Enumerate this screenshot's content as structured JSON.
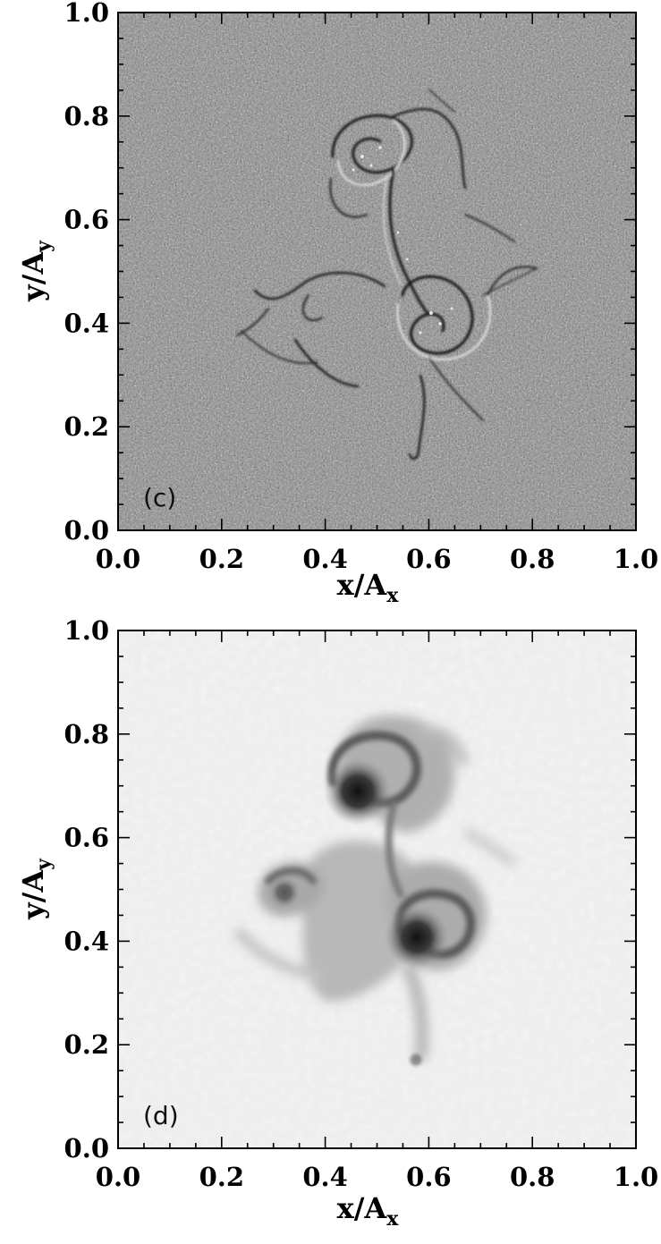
{
  "figure": {
    "panels": [
      {
        "id": "c",
        "tag": "(c)",
        "xlabel_main": "x/A",
        "xlabel_sub": "x",
        "ylabel_main": "y/A",
        "ylabel_sub": "y",
        "style": "high-pass (noisy gray background, sharp filaments)"
      },
      {
        "id": "d",
        "tag": "(d)",
        "xlabel_main": "x/A",
        "xlabel_sub": "x",
        "ylabel_main": "y/A",
        "ylabel_sub": "y",
        "style": "column density (light background, dark vortices)"
      }
    ]
  },
  "chart_data": [
    {
      "type": "heatmap",
      "panel": "(c)",
      "xlabel": "x/A_x",
      "ylabel": "y/A_y",
      "xlim": [
        0.0,
        1.0
      ],
      "ylim": [
        0.0,
        1.0
      ],
      "xticks": [
        "0.0",
        "0.2",
        "0.4",
        "0.6",
        "0.8",
        "1.0"
      ],
      "yticks": [
        "0.0",
        "0.2",
        "0.4",
        "0.6",
        "0.8",
        "1.0"
      ],
      "colormap": "grayscale",
      "grid": false
    },
    {
      "type": "heatmap",
      "panel": "(d)",
      "xlabel": "x/A_x",
      "ylabel": "y/A_y",
      "xlim": [
        0.0,
        1.0
      ],
      "ylim": [
        0.0,
        1.0
      ],
      "xticks": [
        "0.0",
        "0.2",
        "0.4",
        "0.6",
        "0.8",
        "1.0"
      ],
      "yticks": [
        "0.0",
        "0.2",
        "0.4",
        "0.6",
        "0.8",
        "1.0"
      ],
      "colormap": "grayscale",
      "grid": false
    }
  ]
}
